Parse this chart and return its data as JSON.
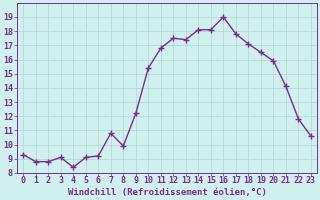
{
  "x": [
    0,
    1,
    2,
    3,
    4,
    5,
    6,
    7,
    8,
    9,
    10,
    11,
    12,
    13,
    14,
    15,
    16,
    17,
    18,
    19,
    20,
    21,
    22,
    23
  ],
  "y": [
    9.3,
    8.8,
    8.8,
    9.1,
    8.4,
    9.1,
    9.2,
    10.8,
    9.9,
    12.2,
    15.4,
    16.8,
    17.5,
    17.4,
    18.1,
    18.1,
    19.0,
    17.8,
    17.1,
    16.5,
    15.9,
    14.1,
    11.8,
    10.6
  ],
  "line_color": "#7b2d8b",
  "marker": "+",
  "marker_size": 4,
  "linewidth": 1.0,
  "xlabel": "Windchill (Refroidissement éolien,°C)",
  "ylabel": "",
  "ylim": [
    8,
    20
  ],
  "xlim": [
    -0.5,
    23.5
  ],
  "yticks": [
    8,
    9,
    10,
    11,
    12,
    13,
    14,
    15,
    16,
    17,
    18,
    19
  ],
  "xticks": [
    0,
    1,
    2,
    3,
    4,
    5,
    6,
    7,
    8,
    9,
    10,
    11,
    12,
    13,
    14,
    15,
    16,
    17,
    18,
    19,
    20,
    21,
    22,
    23
  ],
  "bg_color": "#cff0ee",
  "grid_color": "#b0d4d0",
  "tick_color": "#7b2d8b",
  "label_color": "#7b2d8b",
  "xlabel_fontsize": 6.5,
  "tick_fontsize": 6.0,
  "xtick_labels": [
    "0",
    "1",
    "2",
    "3",
    "4",
    "5",
    "6",
    "7",
    "8",
    "9",
    "10",
    "11",
    "12",
    "13",
    "14",
    "15",
    "16",
    "17",
    "18",
    "19",
    "20",
    "21",
    "22",
    "23"
  ]
}
